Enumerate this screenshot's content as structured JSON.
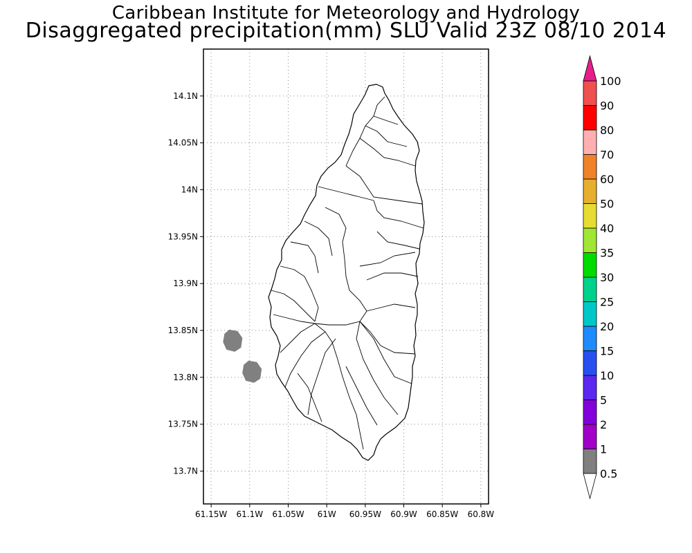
{
  "titles": {
    "line1": "Caribbean Institute for Meteorology and Hydrology",
    "line2": "Disaggregated precipitation(mm) SLU Valid 23Z 08/10 2014"
  },
  "map": {
    "lon_range": [
      -61.16,
      -60.79
    ],
    "lat_range": [
      13.665,
      14.15
    ],
    "lat_ticks": [
      {
        "value": 14.1,
        "label": "14.1N"
      },
      {
        "value": 14.05,
        "label": "14.05N"
      },
      {
        "value": 14.0,
        "label": "14N"
      },
      {
        "value": 13.95,
        "label": "13.95N"
      },
      {
        "value": 13.9,
        "label": "13.9N"
      },
      {
        "value": 13.85,
        "label": "13.85N"
      },
      {
        "value": 13.8,
        "label": "13.8N"
      },
      {
        "value": 13.75,
        "label": "13.75N"
      },
      {
        "value": 13.7,
        "label": "13.7N"
      }
    ],
    "lon_ticks": [
      {
        "value": -61.15,
        "label": "61.15W"
      },
      {
        "value": -61.1,
        "label": "61.1W"
      },
      {
        "value": -61.05,
        "label": "61.05W"
      },
      {
        "value": -61.0,
        "label": "61W"
      },
      {
        "value": -60.95,
        "label": "60.95W"
      },
      {
        "value": -60.9,
        "label": "60.9W"
      },
      {
        "value": -60.85,
        "label": "60.85W"
      },
      {
        "value": -60.8,
        "label": "60.8W"
      }
    ],
    "grid": "dotted",
    "precip_areas": [
      {
        "lon": -61.122,
        "lat": 13.839,
        "class": "0.5-1",
        "color": "#808080"
      },
      {
        "lon": -61.097,
        "lat": 13.806,
        "class": "0.5-1",
        "color": "#808080"
      }
    ]
  },
  "colorbar": {
    "levels": [
      "0.5",
      "1",
      "2",
      "5",
      "10",
      "15",
      "20",
      "25",
      "30",
      "35",
      "40",
      "50",
      "60",
      "70",
      "80",
      "90",
      "100"
    ],
    "colors": [
      "#808080",
      "#a000c8",
      "#8200dc",
      "#5a28f0",
      "#2850f0",
      "#1e8cff",
      "#00c8c8",
      "#00d28c",
      "#00dc00",
      "#a0e632",
      "#e6dc32",
      "#e6af2d",
      "#f08228",
      "#ffafaf",
      "#ff0000",
      "#f05050"
    ],
    "under_color": "#ffffff",
    "over_color": "#e61e8c"
  }
}
